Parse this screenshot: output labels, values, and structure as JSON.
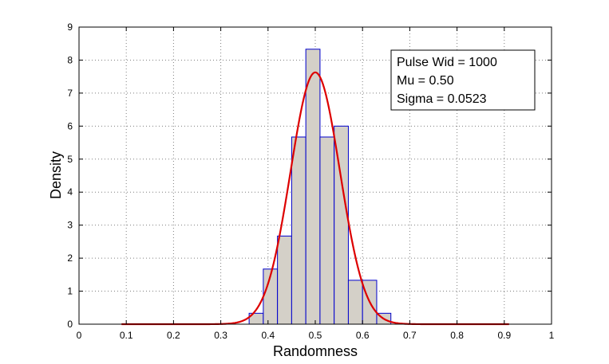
{
  "chart_data": {
    "type": "bar",
    "xlabel": "Randomness",
    "ylabel": "Density",
    "xlim": [
      0,
      1
    ],
    "ylim": [
      0,
      9
    ],
    "xticks": [
      "0",
      "0.1",
      "0.2",
      "0.3",
      "0.4",
      "0.5",
      "0.6",
      "0.7",
      "0.8",
      "0.9",
      "1"
    ],
    "yticks": [
      "0",
      "1",
      "2",
      "3",
      "4",
      "5",
      "6",
      "7",
      "8",
      "9"
    ],
    "grid": true,
    "bin_width": 0.03,
    "histogram": {
      "bin_left_edges": [
        0.36,
        0.39,
        0.42,
        0.45,
        0.48,
        0.51,
        0.54,
        0.57,
        0.6,
        0.63
      ],
      "values": [
        0.33,
        1.67,
        2.67,
        5.67,
        8.33,
        5.67,
        6.0,
        1.33,
        1.33,
        0.33
      ]
    },
    "fit_curve": {
      "type": "normal",
      "mu": 0.5,
      "sigma": 0.0523,
      "x_range": [
        0.09,
        0.91
      ]
    },
    "annotation": {
      "lines": [
        "Pulse Wid = 1000",
        "Mu = 0.50",
        "Sigma = 0.0523"
      ],
      "placement": "top-right"
    },
    "colors": {
      "bar_fill": "#d4d0c8",
      "bar_edge": "#0000cc",
      "curve": "#dd0000",
      "grid": "#7f7f7f"
    }
  }
}
